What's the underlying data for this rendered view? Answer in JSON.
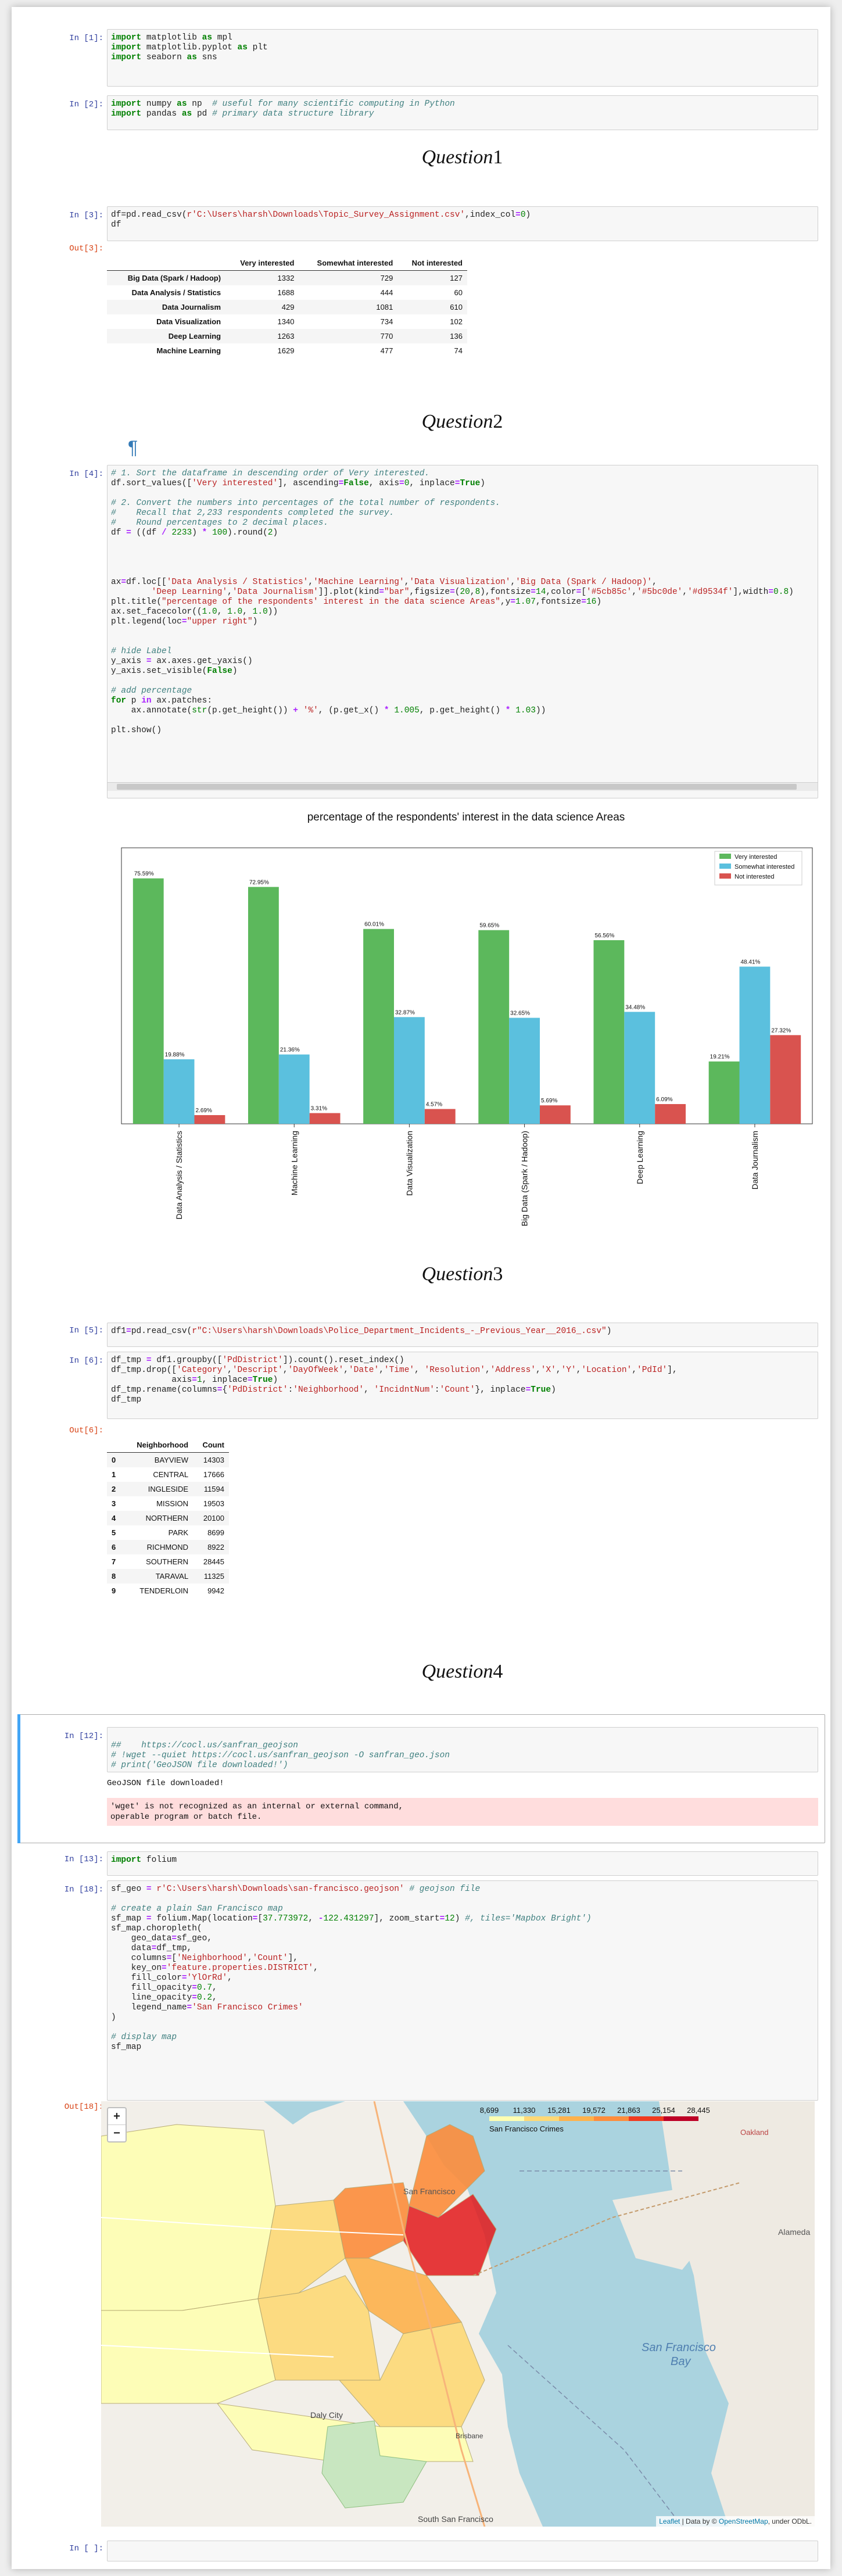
{
  "cells": {
    "c1": {
      "prompt": "In [1]:"
    },
    "c2": {
      "prompt": "In [2]:"
    },
    "c3": {
      "prompt": "In [3]:",
      "out_prompt": "Out[3]:"
    },
    "c4": {
      "prompt": "In [4]:"
    },
    "c5": {
      "prompt": "In [5]:"
    },
    "c6": {
      "prompt": "In [6]:",
      "out_prompt": "Out[6]:"
    },
    "c12": {
      "prompt": "In [12]:",
      "stdout": "GeoJSON file downloaded!",
      "stderr_line1": "'wget' is not recognized as an internal or external command,",
      "stderr_line2": "operable program or batch file."
    },
    "c13": {
      "prompt": "In [13]:"
    },
    "c18": {
      "prompt": "In [18]:",
      "out_prompt": "Out[18]:"
    },
    "cend": {
      "prompt": "In [ ]:"
    }
  },
  "headings": {
    "q1": {
      "word": "Question",
      "num": "1"
    },
    "q2": {
      "word": "Question",
      "num": "2"
    },
    "q3": {
      "word": "Question",
      "num": "3"
    },
    "q4": {
      "word": "Question",
      "num": "4"
    },
    "pilcrow": "¶"
  },
  "table1": {
    "columns": [
      "",
      "Very interested",
      "Somewhat interested",
      "Not interested"
    ],
    "rows": [
      [
        "Big Data (Spark / Hadoop)",
        "1332",
        "729",
        "127"
      ],
      [
        "Data Analysis / Statistics",
        "1688",
        "444",
        "60"
      ],
      [
        "Data Journalism",
        "429",
        "1081",
        "610"
      ],
      [
        "Data Visualization",
        "1340",
        "734",
        "102"
      ],
      [
        "Deep Learning",
        "1263",
        "770",
        "136"
      ],
      [
        "Machine Learning",
        "1629",
        "477",
        "74"
      ]
    ]
  },
  "table2": {
    "columns": [
      "",
      "Neighborhood",
      "Count"
    ],
    "rows": [
      [
        "0",
        "BAYVIEW",
        "14303"
      ],
      [
        "1",
        "CENTRAL",
        "17666"
      ],
      [
        "2",
        "INGLESIDE",
        "11594"
      ],
      [
        "3",
        "MISSION",
        "19503"
      ],
      [
        "4",
        "NORTHERN",
        "20100"
      ],
      [
        "5",
        "PARK",
        "8699"
      ],
      [
        "6",
        "RICHMOND",
        "8922"
      ],
      [
        "7",
        "SOUTHERN",
        "28445"
      ],
      [
        "8",
        "TARAVAL",
        "11325"
      ],
      [
        "9",
        "TENDERLOIN",
        "9942"
      ]
    ]
  },
  "chart_data": {
    "type": "bar",
    "title": "percentage of the respondents' interest in the data science Areas",
    "categories": [
      "Data Analysis / Statistics",
      "Machine Learning",
      "Data Visualization",
      "Big Data (Spark / Hadoop)",
      "Deep Learning",
      "Data Journalism"
    ],
    "series": [
      {
        "name": "Very interested",
        "color": "#5cb85c",
        "values": [
          75.59,
          72.95,
          60.01,
          59.65,
          56.56,
          19.21
        ],
        "labels": [
          "75.59%",
          "72.95%",
          "60.01%",
          "59.65%",
          "56.56%",
          "19.21%"
        ]
      },
      {
        "name": "Somewhat interested",
        "color": "#5bc0de",
        "values": [
          19.88,
          21.36,
          32.87,
          32.65,
          34.48,
          48.41
        ],
        "labels": [
          "19.88%",
          "21.36%",
          "32.87%",
          "32.65%",
          "34.48%",
          "48.41%"
        ]
      },
      {
        "name": "Not interested",
        "color": "#d9534f",
        "values": [
          2.69,
          3.31,
          4.57,
          5.69,
          6.09,
          27.32
        ],
        "labels": [
          "2.69%",
          "3.31%",
          "4.57%",
          "5.69%",
          "6.09%",
          "27.32%"
        ]
      }
    ],
    "ylim": [
      0,
      85
    ],
    "legend": "top-right",
    "y_axis_visible": false
  },
  "map": {
    "zoom_in": "+",
    "zoom_out": "−",
    "legend_ticks": [
      "8,699",
      "11,330",
      "15,281",
      "19,572",
      "21,863",
      "25,154",
      "28,445"
    ],
    "legend_name": "San Francisco Crimes",
    "labels": {
      "sf": "San Francisco",
      "alameda": "Alameda",
      "bay": "San Francisco\nBay",
      "daly": "Daly City",
      "ssf": "South San Francisco",
      "oakland": "Oakland",
      "brisbane": "Brisbane"
    },
    "attribution_leaflet": "Leaflet",
    "attribution_mid": " | Data by © ",
    "attribution_osm": "OpenStreetMap",
    "attribution_end": ", under ODbL."
  }
}
